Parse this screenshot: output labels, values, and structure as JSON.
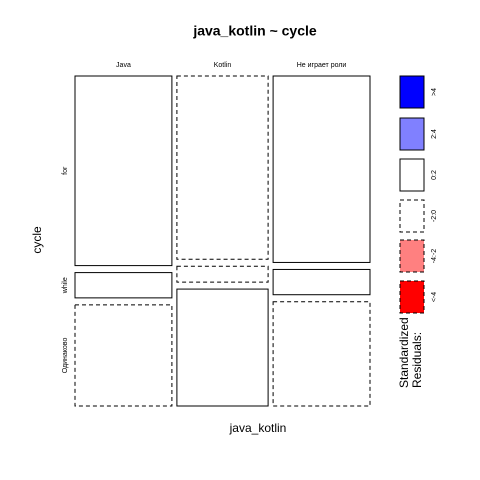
{
  "chart_data": {
    "type": "mosaic",
    "title": "java_kotlin ~ cycle",
    "x_label": "java_kotlin",
    "y_label": "cycle",
    "categories": [
      "for",
      "while",
      "Одинаково"
    ],
    "series": [
      {
        "name": "Java",
        "width": 34,
        "values": [
          60,
          8,
          32
        ],
        "residual": [
          "0:2",
          "0:2",
          "-2:0"
        ]
      },
      {
        "name": "Kotlin",
        "width": 32,
        "values": [
          58,
          5,
          37
        ],
        "residual": [
          "-2:0",
          "-2:0",
          "0:2"
        ]
      },
      {
        "name": "Не играет роли",
        "width": 34,
        "values": [
          59,
          8,
          33
        ],
        "residual": [
          "0:2",
          "0:2",
          "-2:0"
        ]
      }
    ],
    "legend_title": "Standardized Residuals:",
    "legend": [
      {
        "label": ">4",
        "color": "#0000ff",
        "dashed": false
      },
      {
        "label": "2:4",
        "color": "#8080ff",
        "dashed": false
      },
      {
        "label": "0:2",
        "color": "#ffffff",
        "dashed": false
      },
      {
        "label": "-2:0",
        "color": "#ffffff",
        "dashed": true
      },
      {
        "label": "-4:-2",
        "color": "#ff8080",
        "dashed": true
      },
      {
        "label": "<-4",
        "color": "#ff0000",
        "dashed": true
      }
    ]
  }
}
